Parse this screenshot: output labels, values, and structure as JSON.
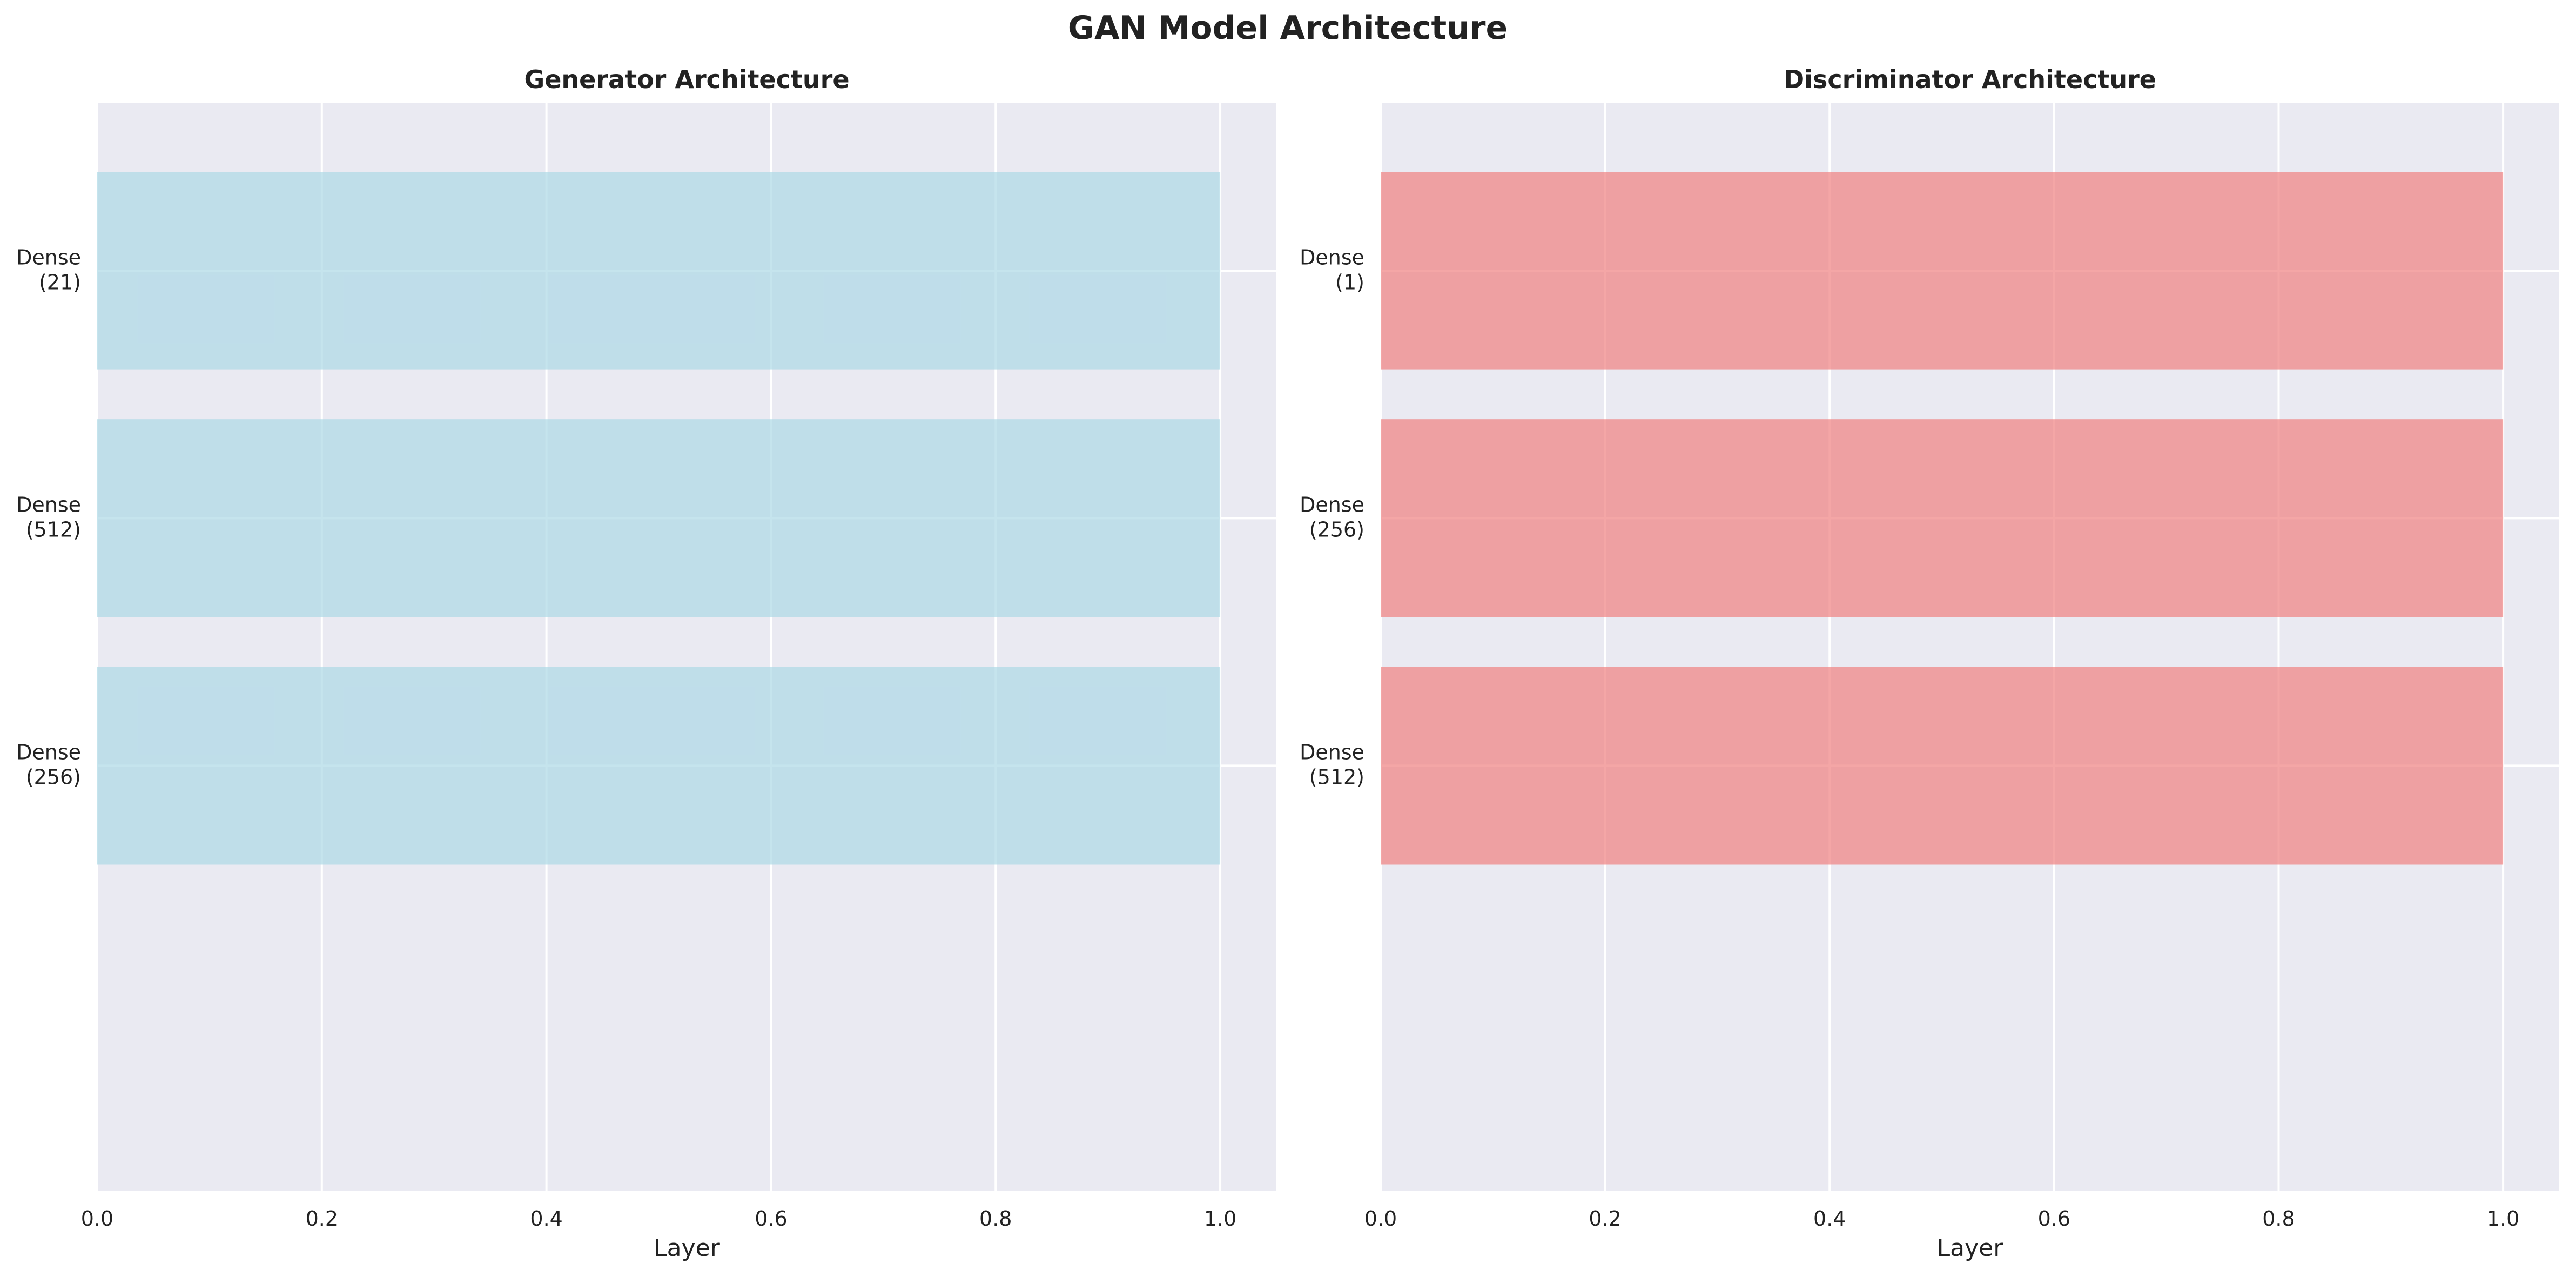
{
  "figure": {
    "title": "GAN Model Architecture"
  },
  "chart_data": [
    {
      "type": "bar",
      "orientation": "horizontal",
      "title": "Generator Architecture",
      "xlabel": "Layer",
      "ylabel": "",
      "categories": [
        "Dense\n(256)",
        "Dense\n(512)",
        "Dense\n(21)"
      ],
      "values": [
        1.0,
        1.0,
        1.0
      ],
      "xlim": [
        0,
        1.05
      ],
      "xticks": [
        "0.0",
        "0.2",
        "0.4",
        "0.6",
        "0.8",
        "1.0"
      ],
      "bar_color": "#add8e6",
      "grid": true,
      "legend": "none"
    },
    {
      "type": "bar",
      "orientation": "horizontal",
      "title": "Discriminator Architecture",
      "xlabel": "Layer",
      "ylabel": "",
      "categories": [
        "Dense\n(512)",
        "Dense\n(256)",
        "Dense\n(1)"
      ],
      "values": [
        1.0,
        1.0,
        1.0
      ],
      "xlim": [
        0,
        1.05
      ],
      "xticks": [
        "0.0",
        "0.2",
        "0.4",
        "0.6",
        "0.8",
        "1.0"
      ],
      "bar_color": "#f08080",
      "grid": true,
      "legend": "none"
    }
  ],
  "colors": {
    "plot_background": "#eaeaf2",
    "grid": "#ffffff",
    "text": "#222222"
  }
}
